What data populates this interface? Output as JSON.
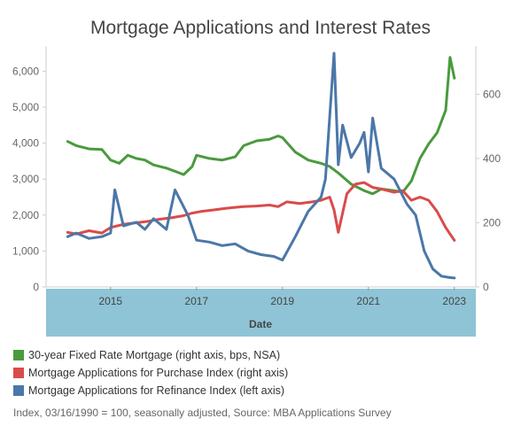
{
  "chart_data": {
    "type": "line",
    "title": "Mortgage Applications and Interest Rates",
    "xlabel": "Date",
    "ylabel_left": "",
    "ylabel_right": "",
    "x_ticks": [
      "2015",
      "2017",
      "2019",
      "2021",
      "2023"
    ],
    "x_range": [
      2013.5,
      2023.5
    ],
    "left_axis": {
      "ylim": [
        0,
        6700
      ],
      "ticks": [
        0,
        1000,
        2000,
        3000,
        4000,
        5000,
        6000
      ],
      "tick_labels": [
        "0",
        "1,000",
        "2,000",
        "3,000",
        "4,000",
        "5,000",
        "6,000"
      ]
    },
    "right_axis": {
      "ylim": [
        0,
        750
      ],
      "ticks": [
        0,
        200,
        400,
        600
      ],
      "tick_labels": [
        "0",
        "200",
        "400",
        "600"
      ]
    },
    "grid": false,
    "legend_position": "bottom-left",
    "series": [
      {
        "name": "30-year Fixed Rate Mortgage (right axis, bps, NSA)",
        "axis": "right",
        "color": "#4a9a3e",
        "x": [
          2014.0,
          2014.2,
          2014.5,
          2014.8,
          2015.0,
          2015.2,
          2015.4,
          2015.6,
          2015.8,
          2016.0,
          2016.3,
          2016.5,
          2016.7,
          2016.9,
          2017.0,
          2017.3,
          2017.6,
          2017.9,
          2018.1,
          2018.4,
          2018.7,
          2018.9,
          2019.0,
          2019.3,
          2019.6,
          2019.9,
          2020.1,
          2020.3,
          2020.6,
          2020.9,
          2021.1,
          2021.3,
          2021.6,
          2021.8,
          2022.0,
          2022.2,
          2022.4,
          2022.6,
          2022.8,
          2022.9,
          2023.0
        ],
        "y": [
          453,
          440,
          430,
          428,
          395,
          385,
          410,
          400,
          395,
          380,
          370,
          360,
          350,
          375,
          410,
          400,
          395,
          405,
          440,
          455,
          460,
          470,
          465,
          420,
          395,
          385,
          375,
          355,
          320,
          300,
          290,
          305,
          300,
          295,
          330,
          400,
          445,
          480,
          550,
          715,
          650
        ]
      },
      {
        "name": "Mortgage Applications for Purchase Index (right axis)",
        "axis": "right",
        "color": "#d94b4b",
        "x": [
          2014.0,
          2014.2,
          2014.5,
          2014.8,
          2015.0,
          2015.3,
          2015.6,
          2015.9,
          2016.1,
          2016.4,
          2016.7,
          2016.9,
          2017.1,
          2017.4,
          2017.7,
          2017.9,
          2018.1,
          2018.4,
          2018.7,
          2018.9,
          2019.1,
          2019.4,
          2019.7,
          2019.9,
          2020.1,
          2020.2,
          2020.3,
          2020.5,
          2020.7,
          2020.9,
          2021.1,
          2021.3,
          2021.6,
          2021.8,
          2022.0,
          2022.2,
          2022.4,
          2022.6,
          2022.8,
          2023.0
        ],
        "y": [
          170,
          165,
          175,
          168,
          185,
          195,
          200,
          205,
          210,
          215,
          222,
          230,
          235,
          240,
          245,
          248,
          250,
          252,
          255,
          250,
          265,
          260,
          265,
          270,
          280,
          240,
          170,
          290,
          320,
          325,
          310,
          305,
          295,
          300,
          270,
          280,
          270,
          235,
          185,
          145
        ]
      },
      {
        "name": "Mortgage Applications for Refinance Index (left axis)",
        "axis": "left",
        "color": "#4b77a8",
        "x": [
          2014.0,
          2014.2,
          2014.5,
          2014.8,
          2015.0,
          2015.1,
          2015.3,
          2015.6,
          2015.8,
          2016.0,
          2016.3,
          2016.5,
          2016.8,
          2017.0,
          2017.3,
          2017.6,
          2017.9,
          2018.2,
          2018.5,
          2018.8,
          2019.0,
          2019.3,
          2019.6,
          2019.9,
          2020.0,
          2020.2,
          2020.3,
          2020.4,
          2020.6,
          2020.8,
          2020.9,
          2021.0,
          2021.1,
          2021.3,
          2021.6,
          2021.9,
          2022.1,
          2022.3,
          2022.5,
          2022.7,
          2022.9,
          2023.0
        ],
        "y": [
          1400,
          1500,
          1350,
          1400,
          1500,
          2700,
          1700,
          1800,
          1600,
          1900,
          1600,
          2700,
          2000,
          1300,
          1250,
          1150,
          1200,
          1000,
          900,
          850,
          750,
          1400,
          2100,
          2500,
          3000,
          6500,
          3400,
          4500,
          3600,
          4000,
          4300,
          3200,
          4700,
          3300,
          3000,
          2300,
          2000,
          1000,
          500,
          300,
          260,
          250
        ]
      }
    ],
    "note": "Index, 03/16/1990 = 100, seasonally adjusted, Source: MBA Applications Survey",
    "colors": {
      "axis_band": "#8ec4d6",
      "axis_line": "#cccccc",
      "tick_text": "#666666"
    }
  }
}
